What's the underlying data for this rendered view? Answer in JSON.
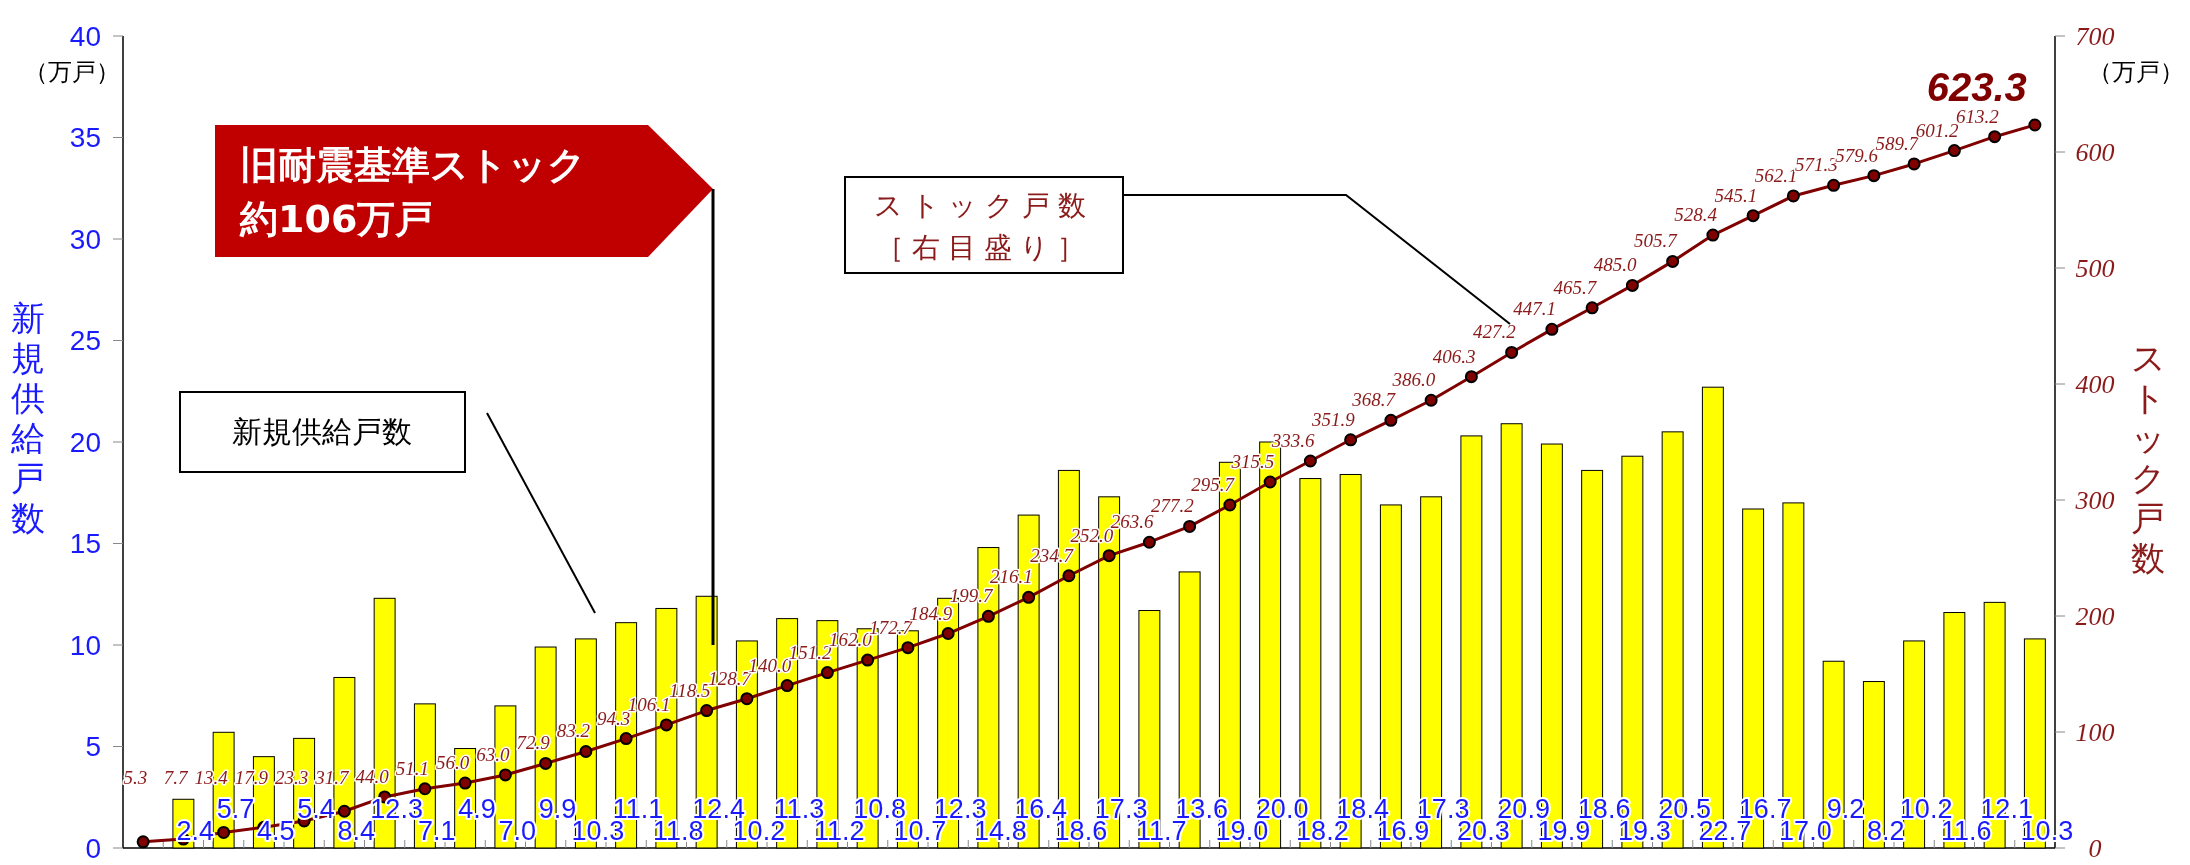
{
  "chart_data": {
    "type": "bar",
    "ylabel": "新規供給戸数",
    "y2label": "ストック戸数",
    "categories": [
      null,
      null,
      null,
      null,
      null,
      null,
      null,
      null,
      null,
      null,
      null,
      null,
      null,
      null,
      null,
      null,
      null,
      null,
      null,
      null,
      null,
      null,
      null,
      null,
      null,
      null,
      null,
      null,
      null,
      null,
      null,
      null,
      null,
      null,
      null,
      null,
      null,
      null,
      null,
      null,
      null,
      null,
      null,
      null,
      null,
      null,
      null,
      null
    ],
    "series": [
      {
        "color": "#ffff00",
        "values": [
          null,
          2.4,
          5.7,
          4.5,
          5.4,
          8.4,
          12.3,
          7.1,
          4.9,
          7.0,
          9.9,
          10.3,
          11.1,
          11.8,
          12.4,
          10.2,
          11.3,
          11.2,
          10.8,
          10.7,
          12.3,
          14.8,
          16.4,
          18.6,
          17.3,
          11.7,
          13.6,
          19.0,
          20.0,
          18.2,
          18.4,
          16.9,
          17.3,
          20.3,
          20.9,
          19.9,
          18.6,
          19.3,
          20.5,
          22.7,
          16.7,
          17.0,
          9.2,
          8.2,
          10.2,
          11.6,
          12.1,
          10.3
        ],
        "value_labels": [
          null,
          "2.4",
          "5.7",
          "4.5",
          "5.4",
          "8.4",
          "12.3",
          "7.1",
          "4.9",
          "7.0",
          "9.9",
          "10.3",
          "11.1",
          "11.8",
          "12.4",
          "10.2",
          "11.3",
          "11.2",
          "10.8",
          "10.7",
          "12.3",
          "14.8",
          "16.4",
          "18.6",
          "17.3",
          "11.7",
          "13.6",
          "19.0",
          "20.0",
          "18.2",
          "18.4",
          "16.9",
          "17.3",
          "20.3",
          "20.9",
          "19.9",
          "18.6",
          "19.3",
          "20.5",
          "22.7",
          "16.7",
          "17.0",
          "9.2",
          "8.2",
          "10.2",
          "11.6",
          "12.1",
          "10.3"
        ]
      },
      {
        "name": "ストック戸数",
        "type": "line",
        "axis": "y2",
        "color": "#800000",
        "marker": "circle",
        "values": [
          5.3,
          7.7,
          13.4,
          17.9,
          23.3,
          31.7,
          44.0,
          51.1,
          56.0,
          63.0,
          72.9,
          83.2,
          94.3,
          106.1,
          118.5,
          128.7,
          140.0,
          151.2,
          162.0,
          172.7,
          184.9,
          199.7,
          216.1,
          234.7,
          252.0,
          263.6,
          277.2,
          295.7,
          315.5,
          333.6,
          351.9,
          368.7,
          386.0,
          406.3,
          427.2,
          447.1,
          465.7,
          485.0,
          505.7,
          528.4,
          545.1,
          562.1,
          571.3,
          579.6,
          589.7,
          601.2,
          613.2,
          623.3
        ],
        "value_labels": [
          "5.3",
          "7.7",
          "13.4",
          "17.9",
          "23.3",
          "31.7",
          "44.0",
          "51.1",
          "56.0",
          "63.0",
          "72.9",
          "83.2",
          "94.3",
          "106.1",
          "118.5",
          "128.7",
          "140.0",
          "151.2",
          "162.0",
          "172.7",
          "184.9",
          "199.7",
          "216.1",
          "234.7",
          "252.0",
          "263.6",
          "277.2",
          "295.7",
          "315.5",
          "333.6",
          "351.9",
          "368.7",
          "386.0",
          "406.3",
          "427.2",
          "447.1",
          "465.7",
          "485.0",
          "505.7",
          "528.4",
          "545.1",
          "562.1",
          "571.3",
          "579.6",
          "589.7",
          "601.2",
          "613.2",
          "623.3"
        ]
      }
    ],
    "ylim": [
      0,
      40
    ],
    "yticks": [
      0,
      5,
      10,
      15,
      20,
      25,
      30,
      35,
      40
    ],
    "y2lim": [
      0,
      700
    ],
    "y2ticks": [
      0,
      100,
      200,
      300,
      400,
      500,
      600,
      700
    ],
    "annotations": [
      "（万戸）",
      "（万戸）",
      "旧耐震基準ストック",
      "約106万戸",
      "［右目盛り］",
      "新規供給戸数"
    ]
  }
}
